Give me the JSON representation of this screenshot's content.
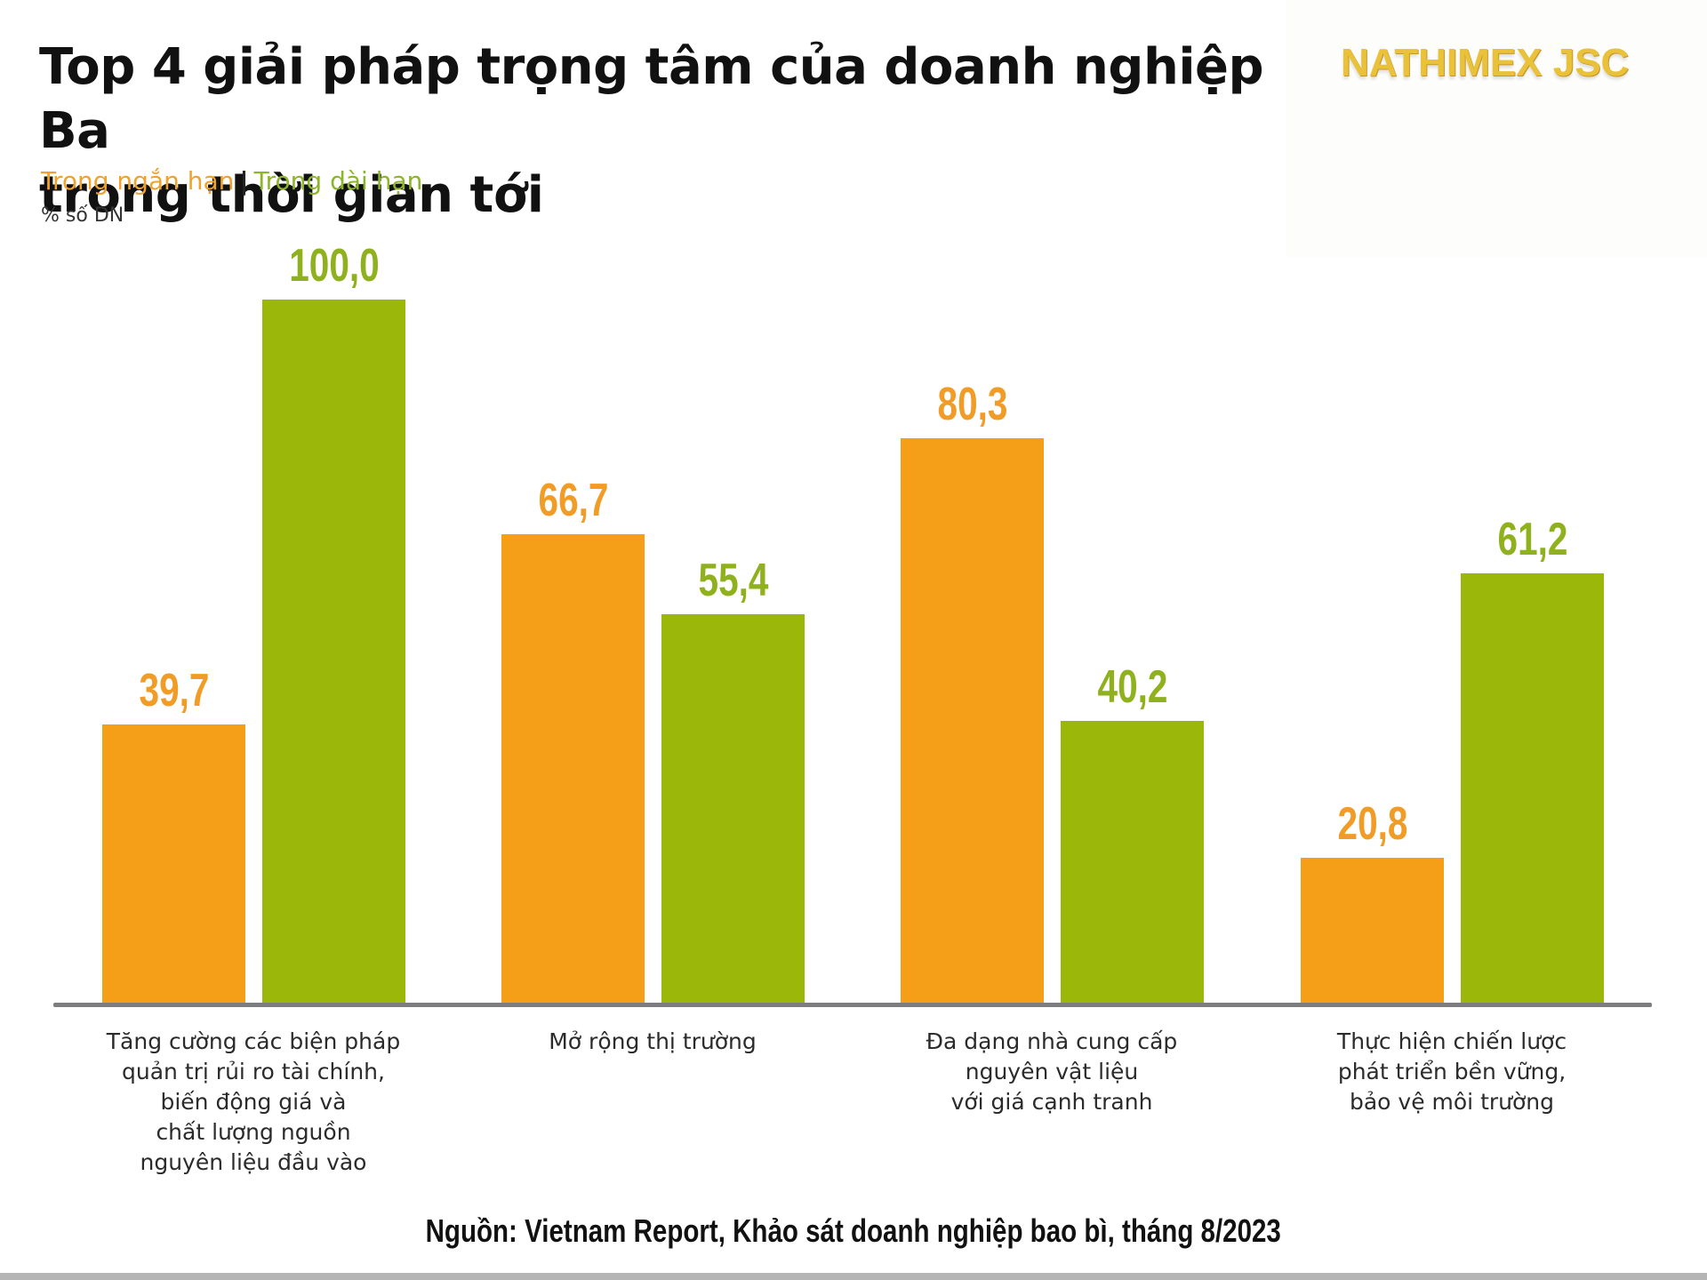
{
  "header": {
    "title_line1": "Top 4 giải pháp trọng tâm của doanh nghiệp Ba",
    "title_line2": "trong thời gian tới",
    "legend_short": "Trong ngắn hạn",
    "legend_separator": "|",
    "legend_long": "Trong dài hạn",
    "unit_label": "% số DN"
  },
  "logo": {
    "text": "NATHIMEX JSC"
  },
  "colors": {
    "short_term": "#f59e17",
    "long_term": "#9bb80a",
    "axis": "#7d7d80",
    "logo_gold": "#e9c23a"
  },
  "categories": [
    {
      "label": "Tăng cường các biện pháp\nquản trị rủi ro tài chính,\nbiến động giá và\nchất lượng nguồn\nnguyên liệu đầu vào",
      "short": "39,7",
      "long": "100,0"
    },
    {
      "label": "Mở rộng thị trường",
      "short": "66,7",
      "long": "55,4"
    },
    {
      "label": "Đa dạng nhà cung cấp\nnguyên vật liệu\nvới giá cạnh tranh",
      "short": "80,3",
      "long": "40,2"
    },
    {
      "label": "Thực hiện chiến lược\nphát triển bền vững,\nbảo vệ môi trường",
      "short": "20,8",
      "long": "61,2"
    }
  ],
  "footer": {
    "source": "Nguồn: Vietnam Report, Khảo sát doanh nghiệp bao bì, tháng 8/2023"
  },
  "chart_data": {
    "type": "bar",
    "title": "Top 4 giải pháp trọng tâm của doanh nghiệp Ba trong thời gian tới",
    "subtitle": "Trong ngắn hạn | Trong dài hạn",
    "xlabel": "",
    "ylabel": "% số DN",
    "categories": [
      "Tăng cường các biện pháp quản trị rủi ro tài chính, biến động giá và chất lượng nguồn nguyên liệu đầu vào",
      "Mở rộng thị trường",
      "Đa dạng nhà cung cấp nguyên vật liệu với giá cạnh tranh",
      "Thực hiện chiến lược phát triển bền vững, bảo vệ môi trường"
    ],
    "series": [
      {
        "name": "Trong ngắn hạn",
        "color": "#f59e17",
        "values": [
          39.7,
          66.7,
          80.3,
          20.8
        ]
      },
      {
        "name": "Trong dài hạn",
        "color": "#9bb80a",
        "values": [
          100.0,
          55.4,
          40.2,
          61.2
        ]
      }
    ],
    "ylim": [
      0,
      100
    ],
    "grid": false,
    "legend_position": "top-left (inline colored text)",
    "data_labels": true,
    "source": "Nguồn: Vietnam Report, Khảo sát doanh nghiệp bao bì, tháng 8/2023"
  }
}
